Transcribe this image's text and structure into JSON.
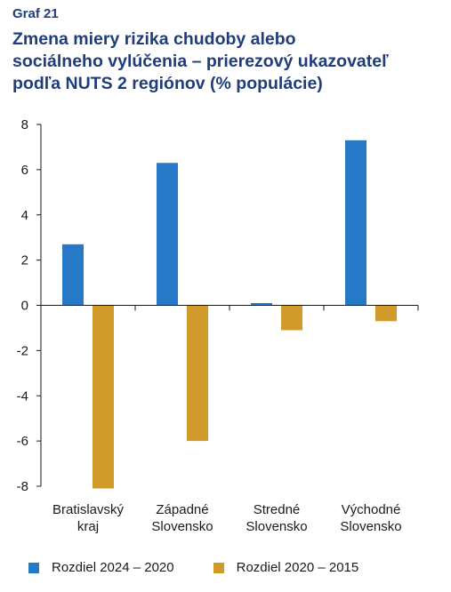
{
  "header": {
    "graf_label": "Graf 21",
    "title_lines": [
      "Zmena miery rizika chudoby alebo",
      "sociálneho vylúčenia – prierezový ukazovateľ",
      "podľa NUTS 2 regiónov (% populácie)"
    ]
  },
  "chart_data": {
    "type": "bar",
    "title": "Zmena miery rizika chudoby alebo sociálneho vylúčenia – prierezový ukazovateľ podľa NUTS 2 regiónov (% populácie)",
    "categories": [
      [
        "Bratislavský",
        "kraj"
      ],
      [
        "Západné",
        "Slovensko"
      ],
      [
        "Stredné",
        "Slovensko"
      ],
      [
        "Východné",
        "Slovensko"
      ]
    ],
    "series": [
      {
        "name": "Rozdiel 2024 – 2020",
        "color": "#2878c8",
        "values": [
          2.7,
          6.3,
          0.1,
          7.3
        ]
      },
      {
        "name": "Rozdiel 2020 – 2015",
        "color": "#d19b2b",
        "values": [
          -8.1,
          -6.0,
          -1.1,
          -0.7
        ]
      }
    ],
    "ylim": [
      -8,
      8
    ],
    "yticks": [
      8,
      6,
      4,
      2,
      0,
      -2,
      -4,
      -6,
      -8
    ],
    "legend_position": "bottom",
    "grid": false
  }
}
